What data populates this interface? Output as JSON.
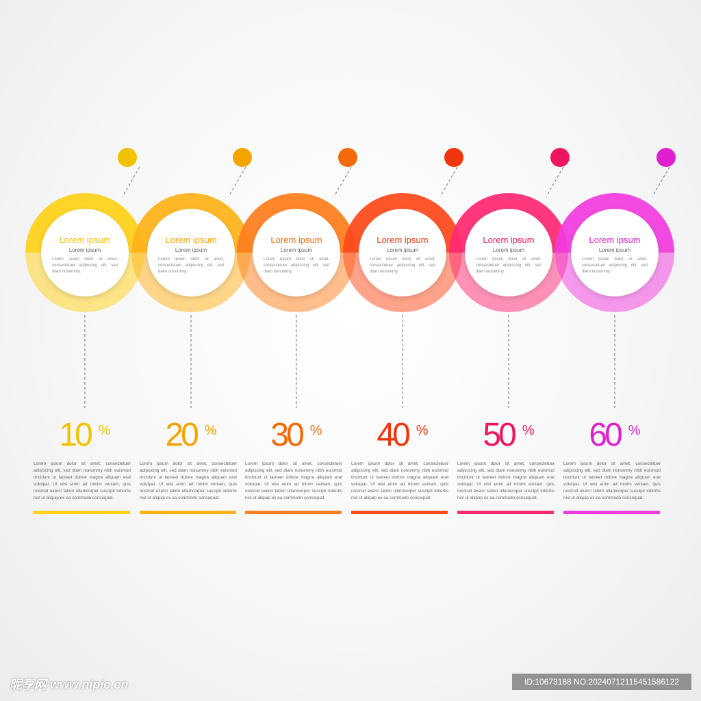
{
  "steps": [
    {
      "id": "s1",
      "title": "Lorem ipsum",
      "subtitle": "Lorem ipsum",
      "body": "Lorem ipsum dolor sit amet, consectetuer adipiscing elit, sed diam nonummy.",
      "value": "10",
      "unit": "%",
      "description": "Lorem ipsum dolor sit amet, consectetuer adipiscing elit, sed diam nonummy nibh euismod tincidunt ut laoreet dolore magna aliquam erat volutpat. Ut wisi enim ad minim veniam, quis nostrud exerci tation ullamcorper suscipit lobortis nisl ut aliquip ex ea commodo consequat.",
      "color": "#FFD21A",
      "color_dark": "#F2C200"
    },
    {
      "id": "s2",
      "title": "Lorem ipsum",
      "subtitle": "Lorem ipsum",
      "body": "Lorem ipsum dolor sit amet, consectetuer adipiscing elit, sed diam nonummy.",
      "value": "20",
      "unit": "%",
      "description": "Lorem ipsum dolor sit amet, consectetuer adipiscing elit, sed diam nonummy nibh euismod tincidunt ut laoreet dolore magna aliquam erat volutpat. Ut wisi enim ad minim veniam, quis nostrud exerci tation ullamcorper suscipit lobortis nisl ut aliquip ex ea commodo consequat.",
      "color": "#FFB319",
      "color_dark": "#F5A300"
    },
    {
      "id": "s3",
      "title": "Lorem ipsum",
      "subtitle": "Lorem ipsum",
      "body": "Lorem ipsum dolor sit amet, consectetuer adipiscing elit, sed diam nonummy.",
      "value": "30",
      "unit": "%",
      "description": "Lorem ipsum dolor sit amet, consectetuer adipiscing elit, sed diam nonummy nibh euismod tincidunt ut laoreet dolore magna aliquam erat volutpat. Ut wisi enim ad minim veniam, quis nostrud exerci tation ullamcorper suscipit lobortis nisl ut aliquip ex ea commodo consequat.",
      "color": "#FF7F1E",
      "color_dark": "#F26A0A"
    },
    {
      "id": "s4",
      "title": "Lorem ipsum",
      "subtitle": "Lorem ipsum",
      "body": "Lorem ipsum dolor sit amet, consectetuer adipiscing elit, sed diam nonummy.",
      "value": "40",
      "unit": "%",
      "description": "Lorem ipsum dolor sit amet, consectetuer adipiscing elit, sed diam nonummy nibh euismod tincidunt ut laoreet dolore magna aliquam erat volutpat. Ut wisi enim ad minim veniam, quis nostrud exerci tation ullamcorper suscipit lobortis nisl ut aliquip ex ea commodo consequat.",
      "color": "#FF4A1C",
      "color_dark": "#F0360C"
    },
    {
      "id": "s5",
      "title": "Lorem ipsum",
      "subtitle": "Lorem ipsum",
      "body": "Lorem ipsum dolor sit amet, consectetuer adipiscing elit, sed diam nonummy.",
      "value": "50",
      "unit": "%",
      "description": "Lorem ipsum dolor sit amet, consectetuer adipiscing elit, sed diam nonummy nibh euismod tincidunt ut laoreet dolore magna aliquam erat volutpat. Ut wisi enim ad minim veniam, quis nostrud exerci tation ullamcorper suscipit lobortis nisl ut aliquip ex ea commodo consequat.",
      "color": "#FF2A72",
      "color_dark": "#EE1560"
    },
    {
      "id": "s6",
      "title": "Lorem ipsum",
      "subtitle": "Lorem ipsum",
      "body": "Lorem ipsum dolor sit amet, consectetuer adipiscing elit, sed diam nonummy.",
      "value": "60",
      "unit": "%",
      "description": "Lorem ipsum dolor sit amet, consectetuer adipiscing elit, sed diam nonummy nibh euismod tincidunt ut laoreet dolore magna aliquam erat volutpat. Ut wisi enim ad minim veniam, quis nostrud exerci tation ullamcorper suscipit lobortis nisl ut aliquip ex ea commodo consequat.",
      "color": "#F23CE0",
      "color_dark": "#E020CF"
    }
  ],
  "watermark": {
    "left": "昵享网 www.nipic.cn",
    "right": "ID:10673188 NO:20240712115451586122"
  }
}
